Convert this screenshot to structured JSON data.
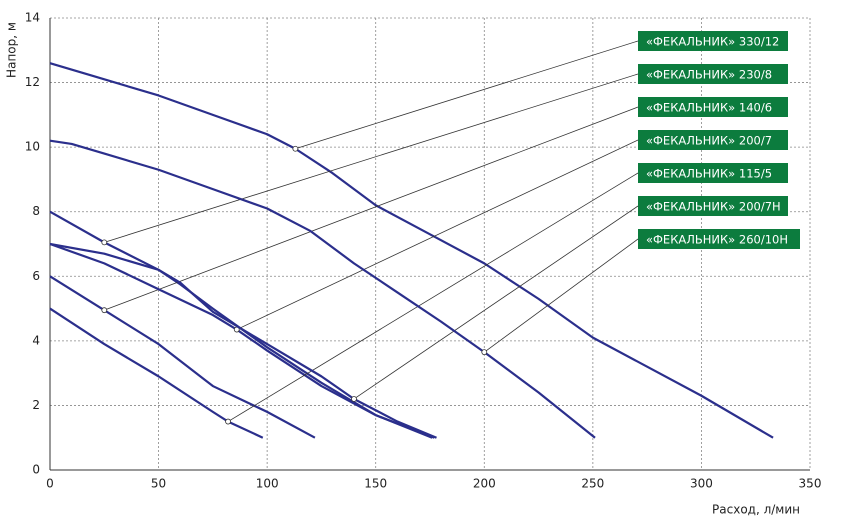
{
  "chart_data": {
    "type": "line",
    "ylabel": "Напор, м",
    "xlabel": "Расход, л/мин",
    "xlim": [
      0,
      350
    ],
    "ylim": [
      0,
      14
    ],
    "xticks": [
      0,
      50,
      100,
      150,
      200,
      250,
      300,
      350
    ],
    "yticks": [
      0,
      2,
      4,
      6,
      8,
      10,
      12,
      14
    ],
    "grid": true,
    "line_color": "#2b2f8c",
    "label_color": "#0c7c3e",
    "series": [
      {
        "name": "«ФЕКАЛЬНИК» 330/12",
        "x": [
          0,
          20,
          50,
          75,
          100,
          113,
          130,
          150,
          175,
          200,
          225,
          250,
          275,
          300,
          333
        ],
        "values": [
          12.6,
          12.2,
          11.6,
          11.0,
          10.4,
          9.95,
          9.2,
          8.2,
          7.3,
          6.4,
          5.3,
          4.1,
          3.2,
          2.3,
          1.0
        ],
        "callout": [
          113,
          9.95
        ]
      },
      {
        "name": "«ФЕКАЛЬНИК» 230/8",
        "x": [
          0,
          25,
          50,
          60,
          75,
          100,
          125,
          150,
          177
        ],
        "values": [
          8.0,
          7.05,
          6.2,
          5.75,
          5.0,
          3.8,
          2.7,
          1.7,
          1.0
        ],
        "callout": [
          25,
          7.05
        ]
      },
      {
        "name": "«ФЕКАЛЬНИК» 140/6",
        "x": [
          0,
          25,
          50,
          75,
          100,
          122
        ],
        "values": [
          6.0,
          4.95,
          3.9,
          2.6,
          1.8,
          1.0
        ],
        "callout": [
          25,
          4.95
        ]
      },
      {
        "name": "«ФЕКАЛЬНИК» 200/7",
        "x": [
          0,
          25,
          50,
          75,
          86,
          100,
          125,
          150,
          176
        ],
        "values": [
          7.0,
          6.4,
          5.6,
          4.8,
          4.35,
          3.7,
          2.6,
          1.7,
          1.0
        ],
        "callout": [
          86,
          4.35
        ]
      },
      {
        "name": "«ФЕКАЛЬНИК» 115/5",
        "x": [
          0,
          25,
          50,
          75,
          82,
          98
        ],
        "values": [
          5.0,
          3.9,
          2.9,
          1.8,
          1.5,
          1.0
        ],
        "callout": [
          82,
          1.5
        ]
      },
      {
        "name": "«ФЕКАЛЬНИК» 200/7Н",
        "x": [
          0,
          25,
          50,
          60,
          75,
          100,
          125,
          140,
          160,
          178
        ],
        "values": [
          7.0,
          6.7,
          6.2,
          5.8,
          4.9,
          3.9,
          2.9,
          2.2,
          1.5,
          1.0
        ],
        "callout": [
          140,
          2.2
        ]
      },
      {
        "name": "«ФЕКАЛЬНИК» 260/10Н",
        "x": [
          0,
          10,
          25,
          50,
          75,
          100,
          120,
          140,
          160,
          180,
          200,
          225,
          251
        ],
        "values": [
          10.2,
          10.1,
          9.8,
          9.3,
          8.7,
          8.1,
          7.4,
          6.4,
          5.5,
          4.6,
          3.65,
          2.4,
          1.0
        ],
        "callout": [
          200,
          3.65
        ]
      }
    ]
  }
}
